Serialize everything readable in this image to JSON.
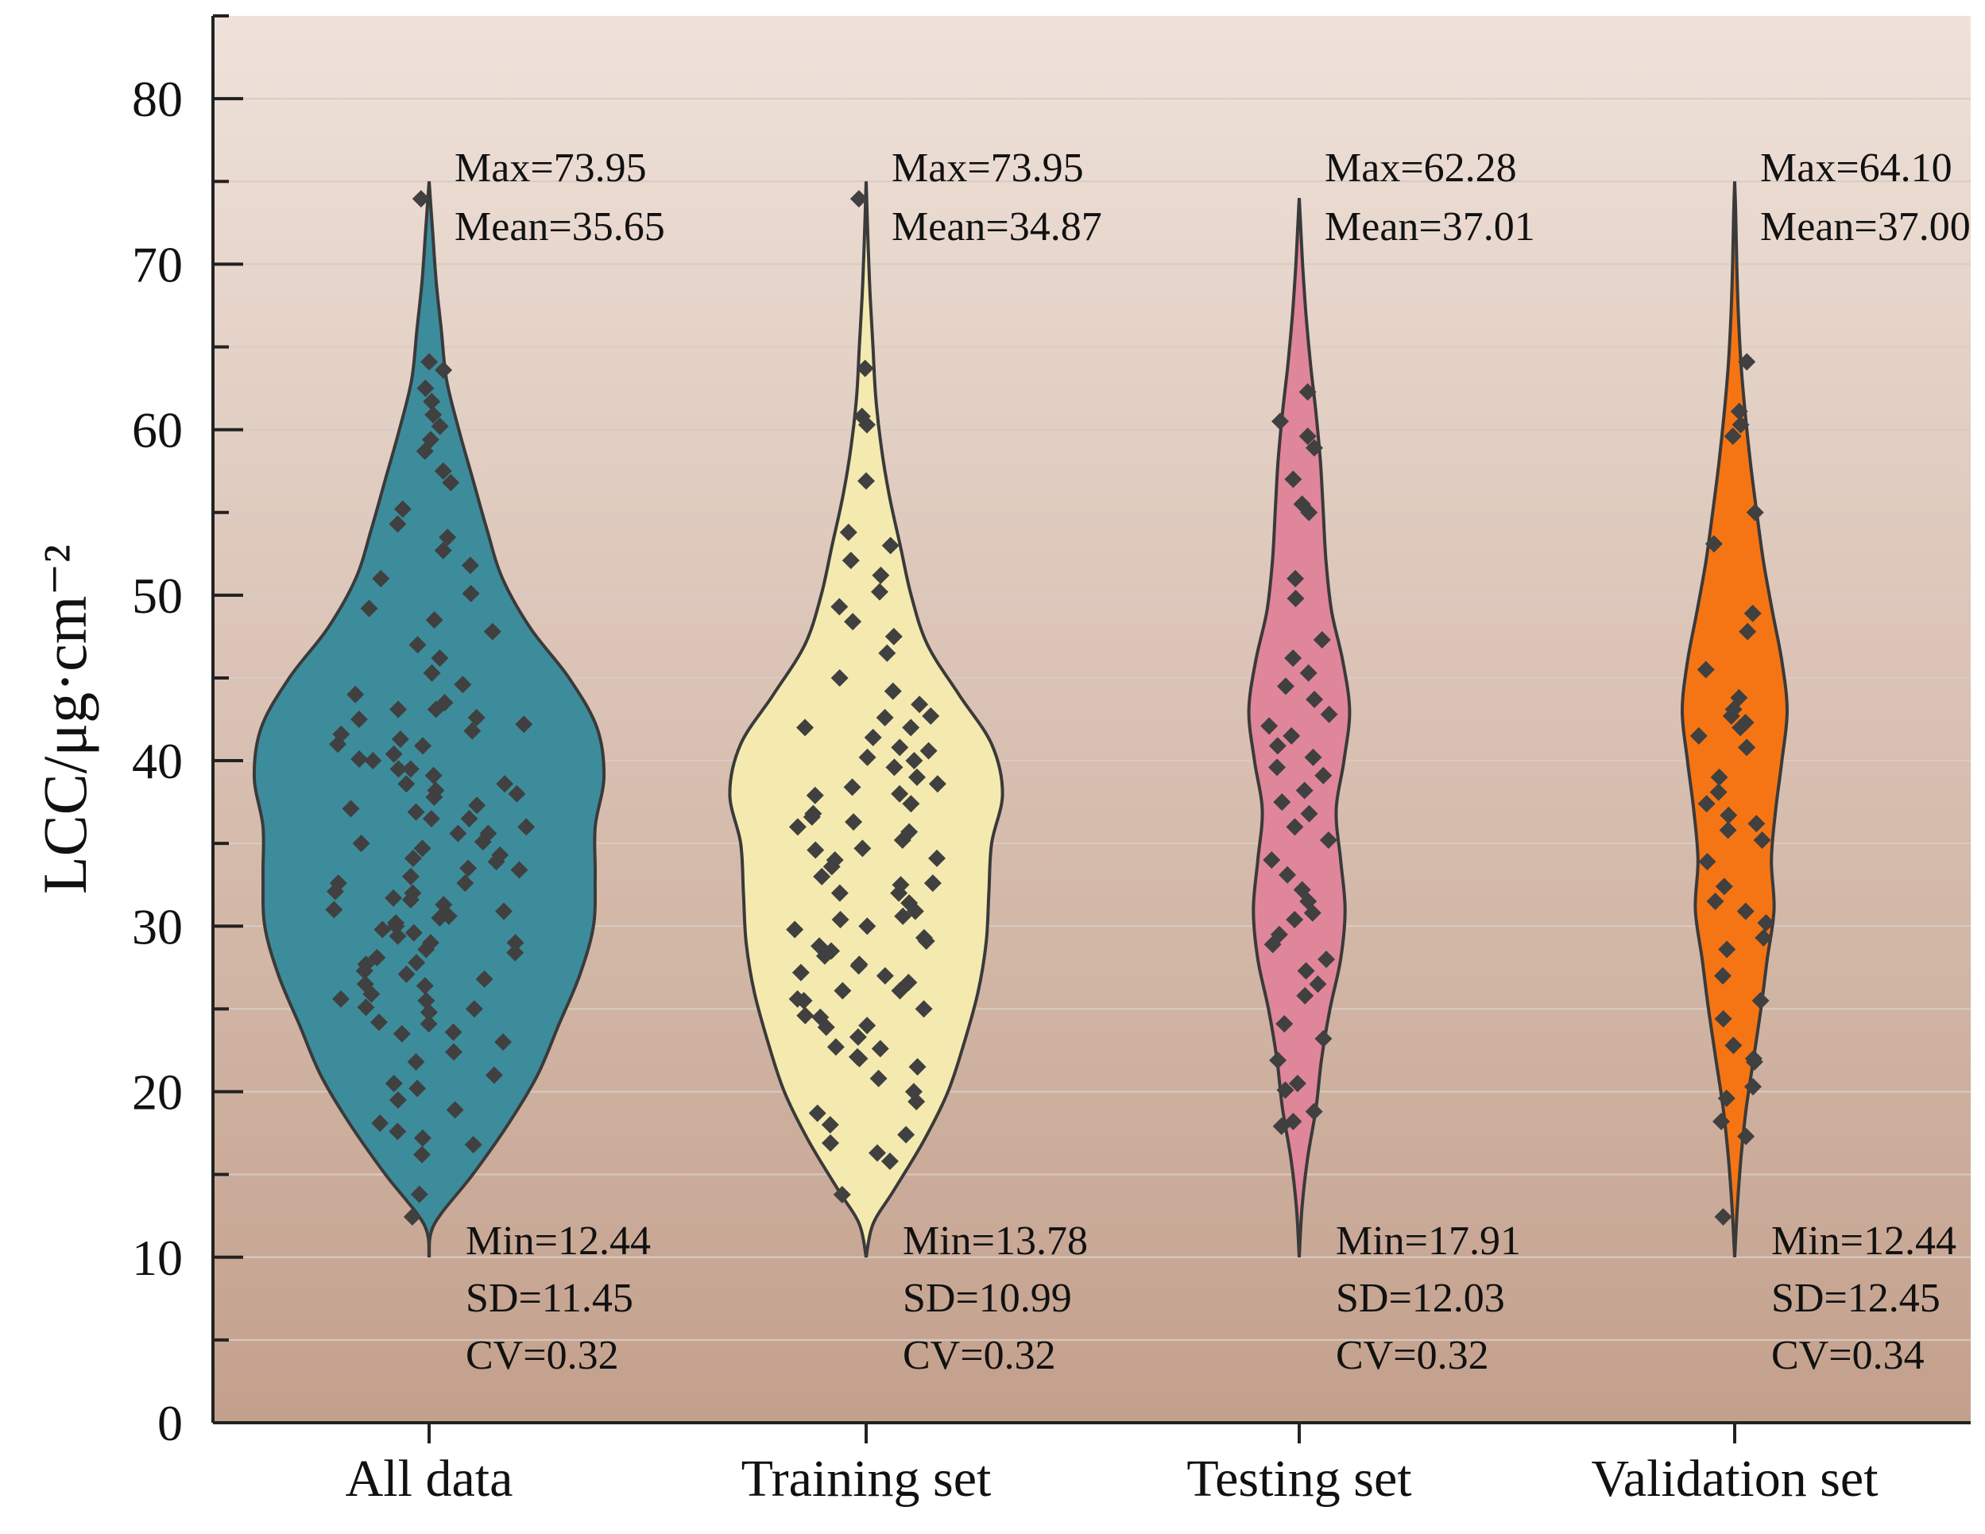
{
  "chart_data": {
    "type": "violin",
    "ylabel": "LCC/μg·cm⁻²",
    "ylim": [
      0,
      85
    ],
    "yticks": [
      0,
      10,
      20,
      30,
      40,
      50,
      60,
      70,
      80
    ],
    "ytick_labels": [
      "0",
      "10",
      "20",
      "30",
      "40",
      "50",
      "60",
      "70",
      "80"
    ],
    "categories": [
      "All data",
      "Training set",
      "Testing set",
      "Validation set"
    ],
    "groups": [
      {
        "name": "All data",
        "color": "#3d8c9c",
        "stats": [
          "Max=73.95",
          "Mean=35.65",
          "Min=12.44",
          "SD=11.45",
          "CV=0.32"
        ],
        "violin_range": [
          10,
          75
        ],
        "density": [
          [
            10,
            0
          ],
          [
            12,
            0.03
          ],
          [
            15,
            0.25
          ],
          [
            18,
            0.45
          ],
          [
            21,
            0.62
          ],
          [
            24,
            0.74
          ],
          [
            27,
            0.86
          ],
          [
            30,
            0.94
          ],
          [
            33,
            0.95
          ],
          [
            36,
            0.95
          ],
          [
            39,
            1.0
          ],
          [
            42,
            0.96
          ],
          [
            45,
            0.8
          ],
          [
            48,
            0.58
          ],
          [
            51,
            0.42
          ],
          [
            54,
            0.33
          ],
          [
            57,
            0.25
          ],
          [
            60,
            0.17
          ],
          [
            63,
            0.1
          ],
          [
            66,
            0.07
          ],
          [
            69,
            0.04
          ],
          [
            72,
            0.02
          ],
          [
            75,
            0
          ]
        ],
        "points": [
          12.44,
          13.8,
          16.2,
          16.8,
          17.2,
          17.6,
          18.1,
          18.9,
          19.5,
          20.2,
          20.5,
          21.0,
          21.8,
          22.4,
          23.0,
          23.6,
          24.2,
          24.8,
          25.1,
          25.5,
          25.9,
          26.4,
          26.8,
          27.3,
          27.7,
          28.1,
          28.6,
          29.0,
          29.4,
          29.8,
          30.2,
          30.5,
          30.9,
          31.3,
          31.7,
          32.1,
          32.6,
          33.0,
          33.4,
          33.9,
          34.3,
          34.7,
          35.1,
          35.6,
          36.0,
          36.5,
          36.9,
          37.3,
          37.8,
          38.2,
          38.6,
          39.1,
          39.5,
          40.0,
          40.4,
          40.9,
          41.3,
          41.8,
          42.2,
          42.6,
          43.1,
          43.5,
          44.0,
          44.6,
          45.3,
          46.2,
          47.0,
          47.8,
          48.5,
          49.2,
          50.1,
          51.0,
          51.8,
          52.7,
          53.5,
          54.3,
          55.2,
          56.8,
          57.5,
          58.7,
          59.4,
          60.2,
          60.9,
          61.7,
          62.5,
          63.6,
          64.1,
          73.95
        ],
        "center_points": [
          23.5,
          25.0,
          26.5,
          27.8,
          29.0,
          30.0,
          31.0,
          32.0,
          33.5,
          35.0,
          36.5,
          38.0,
          39.5,
          41.0,
          42.5
        ]
      },
      {
        "name": "Training set",
        "color": "#f4eab0",
        "stats": [
          "Max=73.95",
          "Mean=34.87",
          "Min=13.78",
          "SD=10.99",
          "CV=0.32"
        ],
        "violin_range": [
          10,
          75
        ],
        "density": [
          [
            10,
            0
          ],
          [
            12,
            0.05
          ],
          [
            14,
            0.2
          ],
          [
            17,
            0.42
          ],
          [
            20,
            0.6
          ],
          [
            23,
            0.72
          ],
          [
            26,
            0.82
          ],
          [
            29,
            0.88
          ],
          [
            32,
            0.9
          ],
          [
            35,
            0.92
          ],
          [
            38,
            1.0
          ],
          [
            41,
            0.92
          ],
          [
            44,
            0.68
          ],
          [
            47,
            0.45
          ],
          [
            50,
            0.33
          ],
          [
            53,
            0.25
          ],
          [
            56,
            0.17
          ],
          [
            59,
            0.11
          ],
          [
            62,
            0.07
          ],
          [
            65,
            0.05
          ],
          [
            68,
            0.03
          ],
          [
            71,
            0.015
          ],
          [
            75,
            0
          ]
        ],
        "points": [
          13.78,
          15.8,
          16.3,
          16.9,
          17.4,
          18.0,
          18.7,
          19.4,
          20.0,
          20.8,
          21.5,
          22.1,
          22.7,
          23.3,
          23.9,
          24.5,
          25.0,
          25.6,
          26.1,
          26.6,
          27.2,
          27.7,
          28.2,
          28.8,
          29.3,
          29.8,
          30.4,
          30.9,
          31.4,
          32.0,
          32.5,
          33.0,
          33.6,
          34.1,
          34.7,
          35.2,
          35.7,
          36.3,
          36.8,
          37.4,
          37.9,
          38.4,
          39.0,
          39.6,
          40.2,
          40.8,
          41.4,
          42.0,
          42.7,
          43.4,
          44.2,
          45.0,
          46.5,
          47.5,
          48.4,
          49.3,
          50.2,
          51.2,
          52.1,
          53.0,
          53.8,
          56.9,
          60.3,
          60.8,
          63.7,
          73.95
        ],
        "center_points": [
          22.0,
          24.0,
          25.5,
          27.0,
          28.5,
          30.0,
          32.0,
          34.0,
          36.0,
          38.0,
          40.0,
          42.0
        ]
      },
      {
        "name": "Testing set",
        "color": "#e0869a",
        "stats": [
          "Max=62.28",
          "Mean=37.01",
          "Min=17.91",
          "SD=12.03",
          "CV=0.32"
        ],
        "violin_range": [
          10,
          74
        ],
        "density": [
          [
            10,
            0
          ],
          [
            13,
            0.05
          ],
          [
            16,
            0.15
          ],
          [
            19,
            0.3
          ],
          [
            22,
            0.4
          ],
          [
            25,
            0.55
          ],
          [
            28,
            0.74
          ],
          [
            31,
            0.82
          ],
          [
            34,
            0.74
          ],
          [
            37,
            0.66
          ],
          [
            40,
            0.8
          ],
          [
            43,
            0.9
          ],
          [
            46,
            0.78
          ],
          [
            49,
            0.58
          ],
          [
            52,
            0.48
          ],
          [
            55,
            0.43
          ],
          [
            58,
            0.38
          ],
          [
            61,
            0.3
          ],
          [
            64,
            0.2
          ],
          [
            67,
            0.12
          ],
          [
            70,
            0.06
          ],
          [
            72,
            0.03
          ],
          [
            74,
            0
          ]
        ],
        "points": [
          17.91,
          18.2,
          18.8,
          20.1,
          20.5,
          21.9,
          23.2,
          24.1,
          25.8,
          26.5,
          27.3,
          28.0,
          28.9,
          29.5,
          30.4,
          30.8,
          31.5,
          32.2,
          33.1,
          34.0,
          35.2,
          36.0,
          36.8,
          37.5,
          38.2,
          39.1,
          39.6,
          40.2,
          40.9,
          41.5,
          42.1,
          42.8,
          43.7,
          44.5,
          45.3,
          46.2,
          47.3,
          49.8,
          51.0,
          55.0,
          55.5,
          57.0,
          58.9,
          59.6,
          60.5,
          62.28
        ]
      },
      {
        "name": "Validation set",
        "color": "#f57514",
        "stats": [
          "Max=64.10",
          "Mean=37.00",
          "Min=12.44",
          "SD=12.45",
          "CV=0.34"
        ],
        "violin_range": [
          10,
          75
        ],
        "density": [
          [
            10,
            0
          ],
          [
            13,
            0.05
          ],
          [
            16,
            0.12
          ],
          [
            19,
            0.22
          ],
          [
            22,
            0.36
          ],
          [
            25,
            0.5
          ],
          [
            28,
            0.62
          ],
          [
            31,
            0.75
          ],
          [
            34,
            0.7
          ],
          [
            37,
            0.78
          ],
          [
            40,
            0.9
          ],
          [
            43,
            1.0
          ],
          [
            46,
            0.9
          ],
          [
            49,
            0.72
          ],
          [
            52,
            0.55
          ],
          [
            55,
            0.42
          ],
          [
            58,
            0.3
          ],
          [
            61,
            0.2
          ],
          [
            64,
            0.12
          ],
          [
            67,
            0.07
          ],
          [
            70,
            0.04
          ],
          [
            73,
            0.02
          ],
          [
            75,
            0
          ]
        ],
        "points": [
          12.44,
          17.3,
          18.2,
          19.6,
          20.3,
          21.8,
          22.0,
          22.8,
          24.4,
          25.5,
          27.0,
          28.6,
          29.3,
          30.2,
          30.9,
          31.5,
          32.4,
          33.9,
          35.2,
          35.8,
          36.2,
          36.7,
          37.4,
          38.1,
          39.0,
          40.8,
          41.5,
          42.0,
          42.3,
          42.7,
          43.1,
          43.8,
          45.5,
          47.8,
          48.9,
          53.1,
          55.0,
          59.6,
          60.3,
          61.1,
          64.1
        ]
      }
    ]
  }
}
